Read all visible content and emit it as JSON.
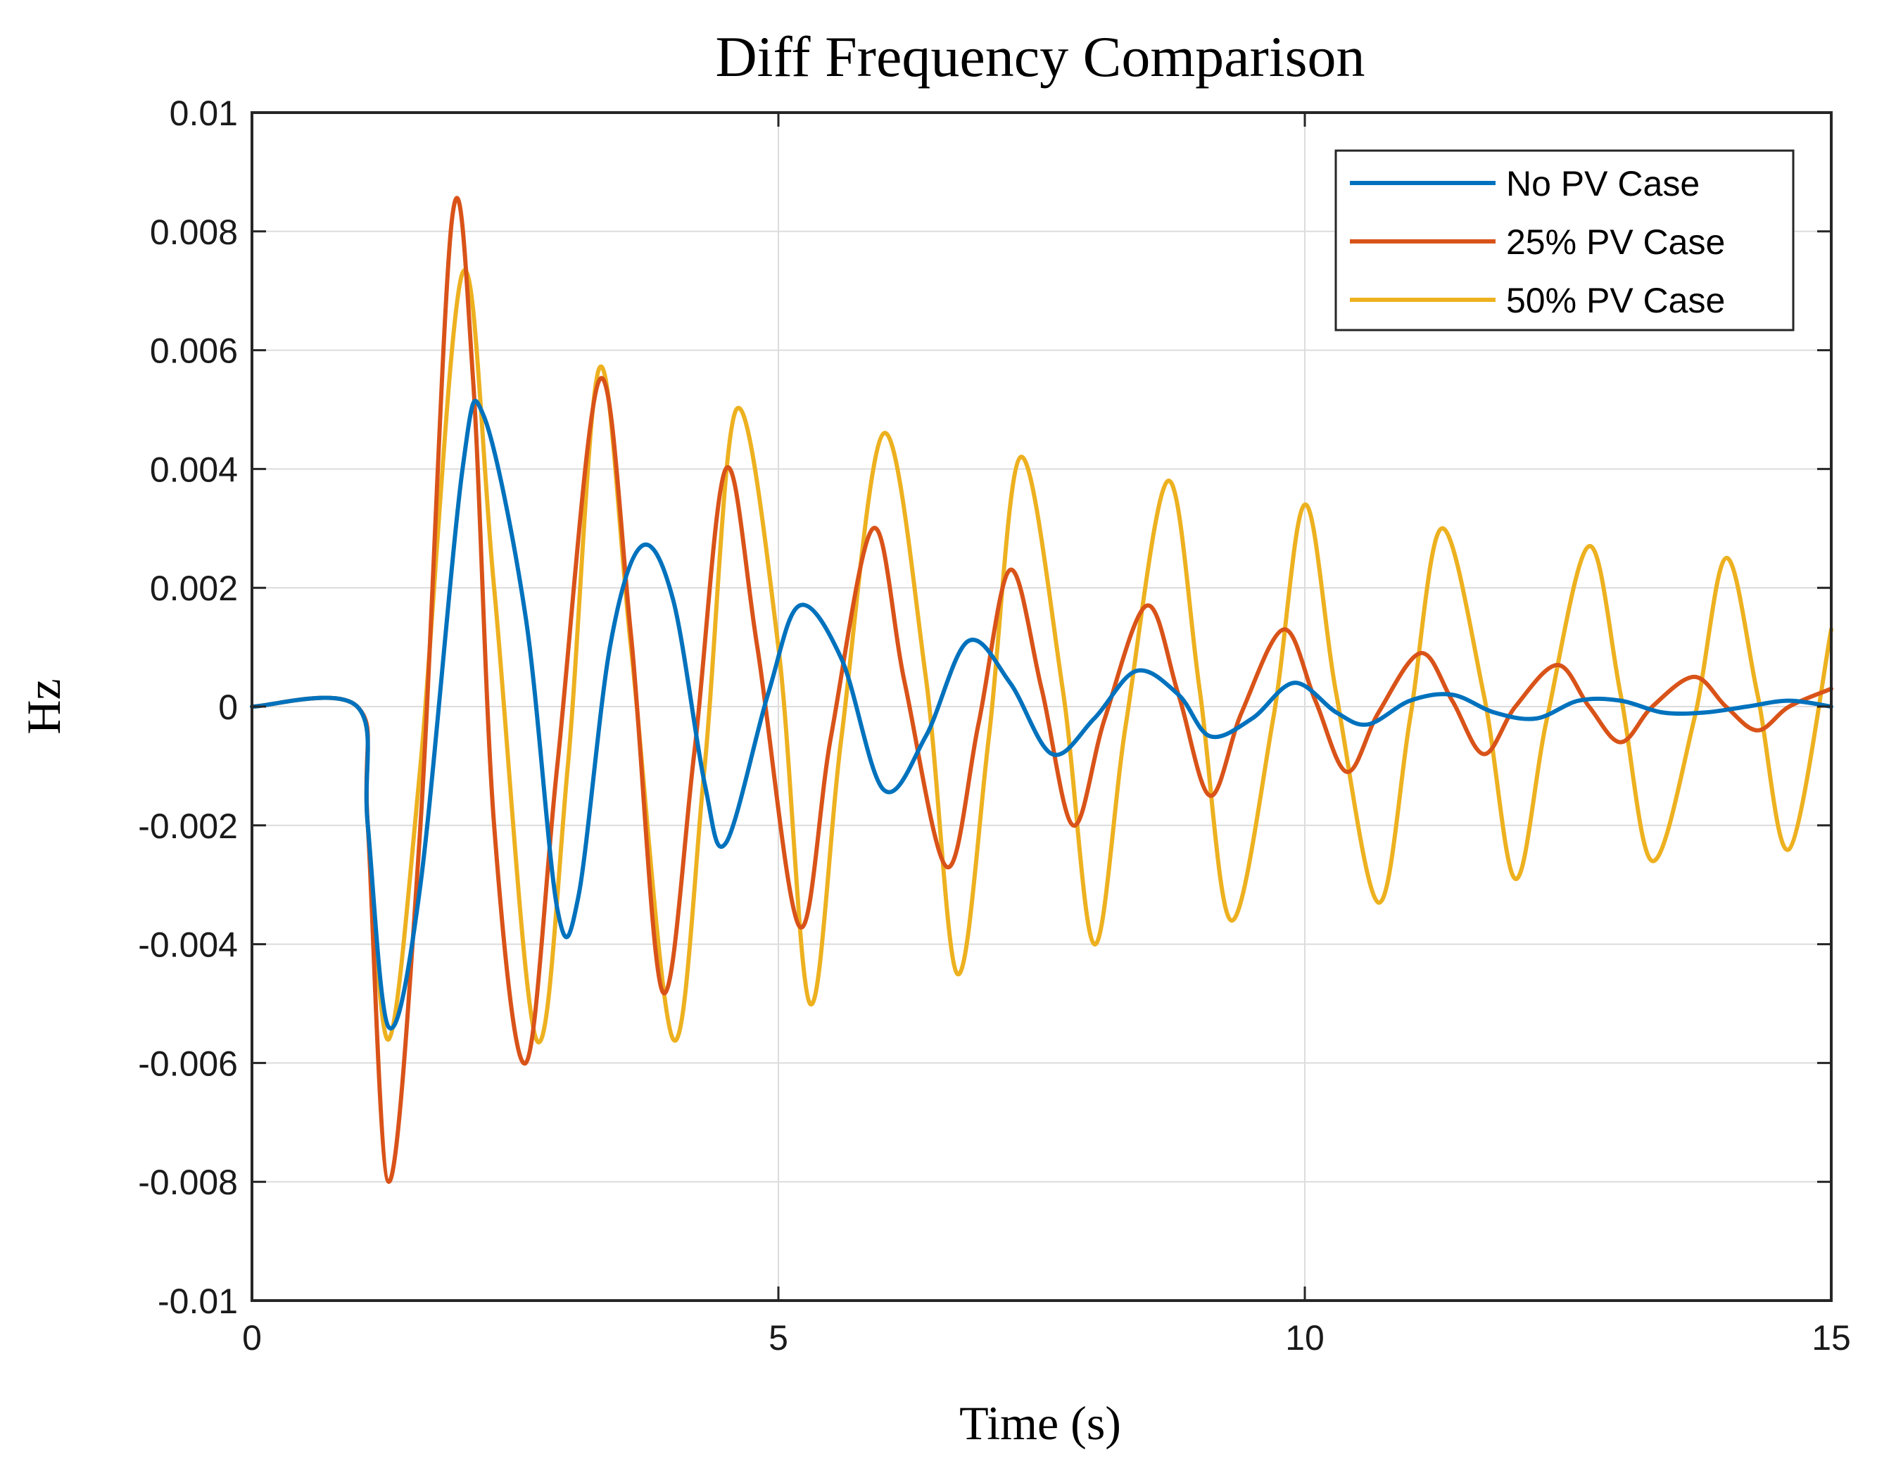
{
  "chart_data": {
    "type": "line",
    "title": "Diff Frequency Comparison",
    "xlabel": "Time (s)",
    "ylabel": "Hz",
    "xlim": [
      0,
      15
    ],
    "ylim": [
      -0.01,
      0.01
    ],
    "x_ticks": [
      0,
      5,
      10,
      15
    ],
    "x_tick_labels": [
      "0",
      "5",
      "10",
      "15"
    ],
    "y_ticks": [
      0.01,
      0.008,
      0.006,
      0.004,
      0.002,
      0,
      -0.002,
      -0.004,
      -0.006,
      -0.008,
      -0.01
    ],
    "y_tick_labels": [
      "0.01",
      "0.008",
      "0.006",
      "0.004",
      "0.002",
      "0",
      "-0.002",
      "-0.004",
      "-0.006",
      "-0.008",
      "-0.01"
    ],
    "grid": true,
    "legend_position": "top-right",
    "series": [
      {
        "name": "No PV Case",
        "color": "#0072BD",
        "x": [
          0,
          1.0,
          1.1,
          1.3,
          1.6,
          2.0,
          2.2,
          2.6,
          2.9,
          3.1,
          3.4,
          3.7,
          4.0,
          4.3,
          4.5,
          4.9,
          5.2,
          5.6,
          6.0,
          6.4,
          6.8,
          7.2,
          7.6,
          8.0,
          8.4,
          8.8,
          9.1,
          9.5,
          9.9,
          10.3,
          10.6,
          11.0,
          11.4,
          11.8,
          12.2,
          12.6,
          13.0,
          13.4,
          13.8,
          14.2,
          14.6,
          15.0
        ],
        "y": [
          0,
          0,
          -0.002,
          -0.0054,
          -0.003,
          0.004,
          0.0049,
          0.0015,
          -0.0034,
          -0.0032,
          0.001,
          0.0027,
          0.0018,
          -0.0013,
          -0.0023,
          0.0002,
          0.0017,
          0.0008,
          -0.0014,
          -0.0005,
          0.0011,
          0.0004,
          -0.0008,
          -0.0002,
          0.0006,
          0.0002,
          -0.0005,
          -0.0002,
          0.0004,
          -0.0001,
          -0.0003,
          0.0001,
          0.0002,
          -0.0001,
          -0.0002,
          0.0001,
          0.0001,
          -0.0001,
          -0.0001,
          0.0,
          0.0001,
          0.0
        ]
      },
      {
        "name": "25% PV Case",
        "color": "#D95319",
        "x": [
          0,
          1.0,
          1.1,
          1.3,
          1.6,
          1.9,
          2.1,
          2.3,
          2.6,
          2.9,
          3.3,
          3.6,
          3.9,
          4.2,
          4.5,
          4.8,
          5.2,
          5.5,
          5.9,
          6.2,
          6.6,
          6.9,
          7.2,
          7.5,
          7.8,
          8.1,
          8.5,
          8.8,
          9.1,
          9.4,
          9.8,
          10.1,
          10.4,
          10.7,
          11.1,
          11.4,
          11.7,
          12.0,
          12.4,
          12.7,
          13.0,
          13.3,
          13.7,
          14.0,
          14.3,
          14.6,
          15.0
        ],
        "y": [
          0,
          0,
          -0.002,
          -0.008,
          -0.002,
          0.0082,
          0.0055,
          -0.002,
          -0.006,
          -0.001,
          0.0055,
          0.0012,
          -0.0048,
          -0.0008,
          0.004,
          0.001,
          -0.0037,
          -0.0005,
          0.003,
          0.0004,
          -0.0027,
          -0.0003,
          0.0023,
          0.0003,
          -0.002,
          -0.0002,
          0.0017,
          0.0002,
          -0.0015,
          -0.0001,
          0.0013,
          0.0001,
          -0.0011,
          -0.0001,
          0.0009,
          0.0001,
          -0.0008,
          0.0,
          0.0007,
          0.0,
          -0.0006,
          0.0,
          0.0005,
          0.0,
          -0.0004,
          0.0,
          0.0003
        ]
      },
      {
        "name": "50% PV Case",
        "color": "#EDB120",
        "x": [
          0,
          1.0,
          1.1,
          1.3,
          1.6,
          2.0,
          2.3,
          2.7,
          3.0,
          3.3,
          3.6,
          4.0,
          4.3,
          4.6,
          5.0,
          5.3,
          5.6,
          6.0,
          6.4,
          6.7,
          7.0,
          7.3,
          7.7,
          8.0,
          8.3,
          8.7,
          9.0,
          9.3,
          9.7,
          10.0,
          10.3,
          10.7,
          11.0,
          11.3,
          11.7,
          12.0,
          12.3,
          12.7,
          13.0,
          13.3,
          13.7,
          14.0,
          14.3,
          14.6,
          15.0
        ],
        "y": [
          0,
          0,
          -0.002,
          -0.0056,
          -0.001,
          0.0073,
          0.002,
          -0.0056,
          -0.001,
          0.0057,
          0.001,
          -0.0056,
          -0.001,
          0.005,
          0.001,
          -0.005,
          -0.0005,
          0.0046,
          0.0005,
          -0.0045,
          -0.0005,
          0.0042,
          0.0003,
          -0.004,
          -0.0003,
          0.0038,
          0.0003,
          -0.0036,
          -0.0002,
          0.0034,
          0.0002,
          -0.0033,
          -0.0002,
          0.003,
          0.0002,
          -0.0029,
          -0.0002,
          0.0027,
          0.0002,
          -0.0026,
          -0.0002,
          0.0025,
          0.0002,
          -0.0024,
          0.0013
        ]
      }
    ]
  }
}
